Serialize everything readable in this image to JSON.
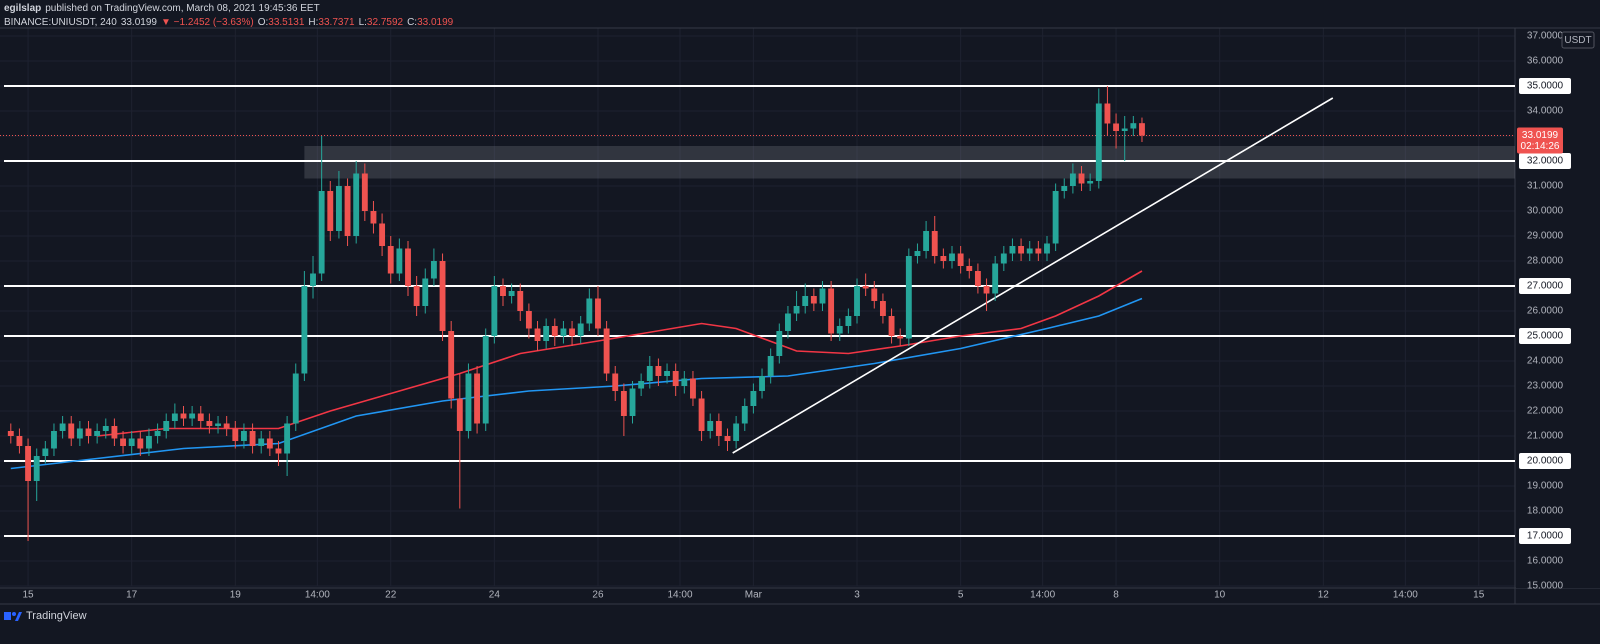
{
  "header": {
    "author": "egilslap",
    "published": "published on TradingView.com, March 08, 2021 19:45:36 EET",
    "symbol": "BINANCE:UNIUSDT, 240",
    "last": "33.0199",
    "change": "▼ −1.2452 (−3.63%)",
    "ohlc": [
      {
        "label": "O:",
        "value": "33.5131"
      },
      {
        "label": "H:",
        "value": "33.7371"
      },
      {
        "label": "L:",
        "value": "32.7592"
      },
      {
        "label": "C:",
        "value": "33.0199"
      }
    ]
  },
  "footer": {
    "brand": "TradingView"
  },
  "chart_data": {
    "type": "candlestick",
    "currency": "USDT",
    "countdown": "02:14:26",
    "up_color": "#26a69a",
    "down_color": "#ef5350",
    "grid": true,
    "open": [
      21.2,
      21.0,
      20.6,
      19.2,
      20.2,
      20.5,
      21.2,
      21.5,
      20.9,
      21.3,
      21.0,
      21.2,
      21.4,
      20.9,
      20.6,
      20.9,
      20.5,
      21.0,
      21.2,
      21.6,
      21.9,
      21.7,
      21.9,
      21.6,
      21.4,
      21.5,
      21.3,
      20.8,
      21.2,
      20.6,
      20.9,
      20.5,
      20.3,
      21.5,
      23.5,
      27.0,
      27.5,
      30.8,
      29.2,
      31.0,
      29.0,
      31.5,
      30.0,
      29.5,
      28.6,
      27.5,
      28.5,
      27.0,
      26.2,
      27.3,
      28.0,
      25.2,
      22.5,
      21.2,
      23.5,
      21.5,
      25.0,
      27.0,
      26.6,
      26.8,
      26.0,
      25.3,
      24.8,
      25.4,
      25.0,
      25.3,
      25.0,
      25.5,
      26.5,
      25.3,
      23.5,
      22.8,
      21.8,
      22.9,
      23.2,
      23.8,
      23.4,
      23.6,
      23.0,
      23.3,
      22.5,
      21.2,
      21.6,
      21.0,
      20.8,
      21.5,
      22.2,
      22.8,
      23.4,
      24.2,
      25.2,
      25.9,
      26.2,
      26.6,
      26.3,
      26.9,
      25.1,
      25.4,
      25.8,
      27.0,
      26.9,
      26.4,
      25.8,
      25.0,
      24.9,
      28.2,
      28.4,
      29.2,
      28.2,
      28.0,
      28.3,
      27.8,
      27.6,
      27.0,
      26.7,
      27.9,
      28.3,
      28.6,
      28.3,
      28.5,
      28.3,
      28.7,
      30.8,
      31.0,
      31.5,
      31.1,
      31.2,
      34.3,
      33.5,
      33.2,
      33.3,
      33.5131
    ],
    "high": [
      21.5,
      21.3,
      20.9,
      20.5,
      20.8,
      21.5,
      21.8,
      21.8,
      21.6,
      21.6,
      21.5,
      21.7,
      21.7,
      21.2,
      21.2,
      21.2,
      21.3,
      21.5,
      21.9,
      22.3,
      22.2,
      22.2,
      22.2,
      21.9,
      21.8,
      21.8,
      21.6,
      21.5,
      21.5,
      21.2,
      21.2,
      20.8,
      21.8,
      23.9,
      27.6,
      28.2,
      33.0,
      31.2,
      31.6,
      31.3,
      32.0,
      31.9,
      30.4,
      29.9,
      29.0,
      28.9,
      28.8,
      27.4,
      27.7,
      28.5,
      28.3,
      25.6,
      23.5,
      23.9,
      23.8,
      25.3,
      27.4,
      27.3,
      27.1,
      27.1,
      26.3,
      25.6,
      25.7,
      25.7,
      25.6,
      25.6,
      25.8,
      26.9,
      27.0,
      25.6,
      23.8,
      23.1,
      23.2,
      23.5,
      24.2,
      24.1,
      23.9,
      23.9,
      23.6,
      23.6,
      22.8,
      21.9,
      21.9,
      21.3,
      21.8,
      22.5,
      23.1,
      23.7,
      24.5,
      25.5,
      26.2,
      26.8,
      27.1,
      26.9,
      27.2,
      27.2,
      25.7,
      26.1,
      27.3,
      27.5,
      27.2,
      26.7,
      26.1,
      25.3,
      28.5,
      28.7,
      29.6,
      29.8,
      28.5,
      28.6,
      28.6,
      28.1,
      27.9,
      27.3,
      28.2,
      28.6,
      28.9,
      28.9,
      28.8,
      28.8,
      29.0,
      31.1,
      31.3,
      31.9,
      31.8,
      31.5,
      34.9,
      35.0,
      33.9,
      33.8,
      33.8,
      33.7371
    ],
    "low": [
      20.7,
      20.3,
      16.8,
      18.4,
      19.9,
      20.2,
      20.9,
      20.6,
      20.6,
      20.7,
      20.7,
      20.9,
      20.6,
      20.3,
      20.3,
      20.2,
      20.2,
      20.7,
      20.9,
      21.3,
      21.4,
      21.4,
      21.3,
      21.1,
      21.1,
      21.0,
      20.5,
      20.5,
      20.3,
      20.3,
      20.2,
      19.8,
      19.4,
      21.2,
      23.2,
      26.5,
      27.2,
      28.8,
      28.9,
      28.6,
      28.7,
      29.6,
      29.1,
      28.2,
      27.1,
      27.2,
      26.6,
      25.8,
      25.9,
      27.0,
      24.8,
      22.1,
      18.1,
      20.9,
      21.1,
      21.2,
      24.7,
      26.2,
      26.3,
      25.6,
      24.9,
      24.4,
      24.5,
      24.6,
      24.7,
      24.6,
      24.7,
      25.2,
      25.0,
      23.2,
      22.4,
      21.0,
      21.5,
      22.6,
      22.9,
      23.0,
      23.1,
      22.6,
      22.7,
      22.2,
      20.8,
      20.9,
      20.6,
      20.4,
      20.5,
      21.2,
      21.9,
      22.5,
      23.1,
      23.9,
      24.9,
      25.6,
      25.9,
      26.0,
      26.0,
      24.8,
      24.8,
      25.1,
      25.5,
      26.6,
      26.1,
      25.5,
      24.7,
      24.6,
      24.6,
      27.9,
      28.1,
      27.9,
      27.7,
      27.7,
      27.5,
      27.3,
      26.7,
      26.0,
      26.4,
      27.6,
      28.0,
      28.0,
      28.0,
      28.0,
      28.0,
      28.4,
      30.5,
      30.7,
      30.8,
      30.8,
      30.9,
      33.0,
      32.5,
      32.0,
      33.0,
      32.7592
    ],
    "close": [
      21.0,
      20.6,
      19.2,
      20.2,
      20.5,
      21.2,
      21.5,
      20.9,
      21.3,
      21.0,
      21.2,
      21.4,
      20.9,
      20.6,
      20.9,
      20.5,
      21.0,
      21.2,
      21.6,
      21.9,
      21.7,
      21.9,
      21.6,
      21.4,
      21.5,
      21.3,
      20.8,
      21.2,
      20.6,
      20.9,
      20.5,
      20.3,
      21.5,
      23.5,
      27.0,
      27.5,
      30.8,
      29.2,
      31.0,
      29.0,
      31.5,
      30.0,
      29.5,
      28.6,
      27.5,
      28.5,
      27.0,
      26.2,
      27.3,
      28.0,
      25.2,
      22.5,
      21.2,
      23.5,
      21.5,
      25.0,
      27.0,
      26.6,
      26.8,
      26.0,
      25.3,
      24.8,
      25.4,
      25.0,
      25.3,
      25.0,
      25.5,
      26.5,
      25.3,
      23.5,
      22.8,
      21.8,
      22.9,
      23.2,
      23.8,
      23.4,
      23.6,
      23.0,
      23.3,
      22.5,
      21.2,
      21.6,
      21.0,
      20.8,
      21.5,
      22.2,
      22.8,
      23.4,
      24.2,
      25.2,
      25.9,
      26.2,
      26.6,
      26.3,
      26.9,
      25.1,
      25.4,
      25.8,
      27.0,
      26.9,
      26.4,
      25.8,
      25.0,
      24.9,
      28.2,
      28.4,
      29.2,
      28.2,
      28.0,
      28.3,
      27.8,
      27.6,
      27.0,
      26.7,
      27.9,
      28.3,
      28.6,
      28.3,
      28.5,
      28.3,
      28.7,
      30.8,
      31.0,
      31.5,
      31.1,
      31.2,
      34.3,
      33.5,
      33.2,
      33.3,
      33.5131,
      33.0199
    ],
    "series": [
      {
        "color": "#f23645",
        "x": [
          10,
          18,
          31,
          37,
          45,
          52,
          59,
          68,
          80,
          84,
          91,
          97,
          103,
          110,
          117,
          121,
          126,
          131
        ],
        "values": [
          21.0,
          21.3,
          21.3,
          22.0,
          22.8,
          23.5,
          24.3,
          24.8,
          25.5,
          25.3,
          24.4,
          24.3,
          24.6,
          25.0,
          25.3,
          25.8,
          26.6,
          27.6
        ]
      },
      {
        "color": "#2196f3",
        "x": [
          0,
          10,
          20,
          31,
          40,
          50,
          60,
          70,
          80,
          90,
          100,
          110,
          120,
          126,
          131
        ],
        "values": [
          19.7,
          20.1,
          20.5,
          20.7,
          21.8,
          22.4,
          22.8,
          23.0,
          23.3,
          23.4,
          23.9,
          24.5,
          25.3,
          25.8,
          26.5
        ]
      }
    ],
    "levels": [
      35,
      32,
      27,
      25,
      20,
      17
    ],
    "zone": {
      "x": 34,
      "range": [
        31.3,
        32.6
      ]
    },
    "trendline": {
      "x": [
        83.6,
        153.1
      ],
      "y": [
        20.32,
        34.52
      ]
    },
    "xlim": [
      -1.25,
      174.2
    ],
    "xticks": [
      {
        "value": 2,
        "label": "15"
      },
      {
        "value": 14,
        "label": "17"
      },
      {
        "value": 26,
        "label": "19"
      },
      {
        "value": 35.5,
        "label": "14:00"
      },
      {
        "value": 44,
        "label": "22"
      },
      {
        "value": 56,
        "label": "24"
      },
      {
        "value": 68,
        "label": "26"
      },
      {
        "value": 77.5,
        "label": "14:00"
      },
      {
        "value": 86,
        "label": "Mar"
      },
      {
        "value": 98,
        "label": "3"
      },
      {
        "value": 110,
        "label": "5"
      },
      {
        "value": 119.5,
        "label": "14:00"
      },
      {
        "value": 128,
        "label": "8"
      },
      {
        "value": 140,
        "label": "10"
      },
      {
        "value": 152,
        "label": "12"
      },
      {
        "value": 161.5,
        "label": "14:00"
      },
      {
        "value": 170,
        "label": "15"
      }
    ],
    "ylim": [
      15,
      37
    ],
    "yticks": [
      {
        "value": 15,
        "label": "15.0000"
      },
      {
        "value": 16,
        "label": "16.0000"
      },
      {
        "value": 17,
        "label": "17.0000"
      },
      {
        "value": 18,
        "label": "18.0000"
      },
      {
        "value": 19,
        "label": "19.0000"
      },
      {
        "value": 20,
        "label": "20.0000"
      },
      {
        "value": 21,
        "label": "21.0000"
      },
      {
        "value": 22,
        "label": "22.0000"
      },
      {
        "value": 23,
        "label": "23.0000"
      },
      {
        "value": 24,
        "label": "24.0000"
      },
      {
        "value": 25,
        "label": "25.0000"
      },
      {
        "value": 26,
        "label": "26.0000"
      },
      {
        "value": 27,
        "label": "27.0000"
      },
      {
        "value": 28,
        "label": "28.0000"
      },
      {
        "value": 29,
        "label": "29.0000"
      },
      {
        "value": 30,
        "label": "30.0000"
      },
      {
        "value": 31,
        "label": "31.0000"
      },
      {
        "value": 32,
        "label": "32.0000"
      },
      {
        "value": 33,
        "label": "33.0000"
      },
      {
        "value": 34,
        "label": "34.0000"
      },
      {
        "value": 35,
        "label": "35.0000"
      },
      {
        "value": 36,
        "label": "36.0000"
      },
      {
        "value": 37,
        "label": "37.0000"
      }
    ]
  }
}
